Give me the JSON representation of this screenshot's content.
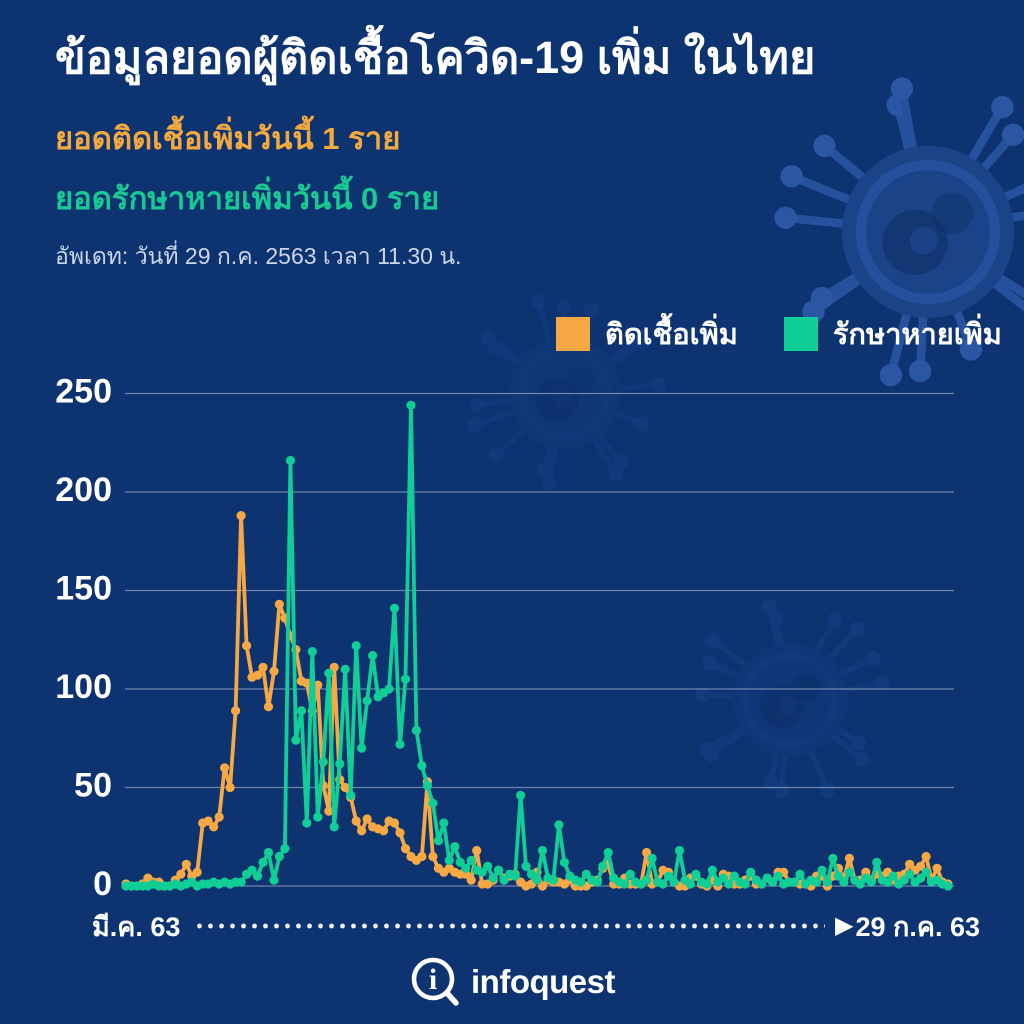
{
  "header": {
    "title": "ข้อมูลยอดผู้ติดเชื้อโควิด-19 เพิ่ม ในไทย",
    "subtitle_infected": "ยอดติดเชื้อเพิ่มวันนี้ 1 ราย",
    "subtitle_recovered": "ยอดรักษาหายเพิ่มวันนี้ 0 ราย",
    "updated": "อัพเดท: วันที่ 29 ก.ค. 2563 เวลา 11.30 น."
  },
  "colors": {
    "background": "#0d3371",
    "infected": "#f5a843",
    "recovered": "#0fce96",
    "gridline": "rgba(205,216,232,0.5)",
    "text": "#ffffff"
  },
  "icons": {
    "arrow_right": "▶",
    "logo_glyph": "i"
  },
  "footer": {
    "logo_text": "infoquest"
  },
  "chart_data": {
    "type": "line",
    "title": "ข้อมูลยอดผู้ติดเชื้อโควิด-19 เพิ่ม ในไทย",
    "x_start_label": "มี.ค. 63",
    "x_end_label": "29 ก.ค. 63",
    "x_description": "daily, March 1 2020 - July 29 2020",
    "ylim": [
      0,
      250
    ],
    "y_ticks": [
      0,
      50,
      100,
      150,
      200,
      250
    ],
    "grid": true,
    "legend_position": "top-right",
    "series": [
      {
        "name": "ติดเชื้อเพิ่ม",
        "color": "#f5a843",
        "values": [
          1,
          0,
          0,
          1,
          4,
          2,
          2,
          0,
          0,
          3,
          6,
          11,
          5,
          7,
          32,
          33,
          30,
          35,
          60,
          50,
          89,
          188,
          122,
          106,
          107,
          111,
          91,
          109,
          143,
          136,
          127,
          120,
          104,
          103,
          89,
          102,
          51,
          38,
          111,
          54,
          50,
          45,
          33,
          28,
          34,
          30,
          29,
          28,
          33,
          32,
          27,
          19,
          15,
          13,
          15,
          53,
          15,
          9,
          7,
          9,
          7,
          6,
          6,
          3,
          18,
          1,
          1,
          3,
          8,
          4,
          5,
          6,
          2,
          0,
          1,
          7,
          0,
          3,
          2,
          2,
          1,
          3,
          0,
          0,
          0,
          2,
          3,
          9,
          11,
          1,
          1,
          4,
          1,
          1,
          1,
          17,
          1,
          2,
          8,
          7,
          2,
          0,
          0,
          4,
          5,
          1,
          0,
          3,
          0,
          6,
          5,
          1,
          1,
          3,
          5,
          1,
          1,
          4,
          2,
          7,
          7,
          2,
          2,
          1,
          1,
          0,
          5,
          5,
          0,
          5,
          9,
          4,
          14,
          3,
          3,
          7,
          3,
          6,
          5,
          7,
          3,
          5,
          6,
          11,
          8,
          10,
          15,
          3,
          9,
          2,
          1
        ]
      },
      {
        "name": "รักษาหายเพิ่ม",
        "color": "#0fce96",
        "values": [
          0,
          0,
          0,
          0,
          0,
          1,
          0,
          0,
          0,
          1,
          0,
          1,
          2,
          0,
          1,
          1,
          2,
          1,
          2,
          1,
          2,
          2,
          6,
          8,
          5,
          12,
          17,
          3,
          15,
          19,
          216,
          74,
          89,
          32,
          119,
          35,
          63,
          108,
          30,
          62,
          110,
          46,
          122,
          70,
          94,
          117,
          96,
          98,
          100,
          141,
          72,
          105,
          244,
          79,
          61,
          51,
          42,
          23,
          32,
          13,
          20,
          12,
          9,
          13,
          8,
          7,
          10,
          4,
          8,
          3,
          6,
          5,
          46,
          10,
          6,
          3,
          18,
          4,
          3,
          31,
          12,
          5,
          3,
          2,
          6,
          3,
          2,
          10,
          17,
          4,
          2,
          1,
          6,
          2,
          1,
          3,
          14,
          2,
          1,
          5,
          2,
          18,
          3,
          1,
          6,
          2,
          1,
          8,
          2,
          4,
          1,
          5,
          2,
          1,
          7,
          3,
          1,
          4,
          2,
          5,
          1,
          2,
          2,
          6,
          1,
          3,
          2,
          8,
          2,
          14,
          5,
          2,
          7,
          3,
          1,
          4,
          2,
          12,
          3,
          2,
          5,
          1,
          3,
          6,
          2,
          4,
          7,
          2,
          3,
          1,
          0
        ]
      }
    ]
  }
}
